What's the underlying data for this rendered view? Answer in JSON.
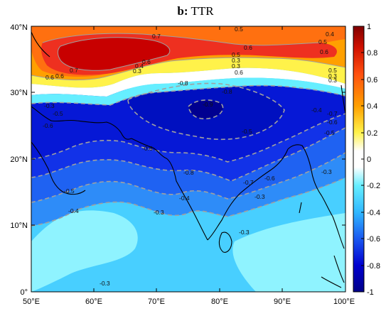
{
  "figure": {
    "panel_label": "b:",
    "title": "TTR"
  },
  "map": {
    "region": "Indian subcontinent / Arabian Sea / Bay of Bengal",
    "lon_ticks": [
      "50°E",
      "60°E",
      "70°E",
      "80°E",
      "90°E",
      "100°E"
    ],
    "lat_ticks": [
      "0°",
      "10°N",
      "20°N",
      "30°N",
      "40°N"
    ],
    "lon_range": [
      50,
      100
    ],
    "lat_range": [
      0,
      40
    ],
    "contour_labels": [
      "0.7",
      "0.5",
      "0.4",
      "0.5",
      "0.6",
      "0.6",
      "0.7",
      "0.6",
      "0.4",
      "0.3",
      "0.6",
      "0.5",
      "0.3",
      "0.6",
      "0.5",
      "0.3",
      "0.6",
      "0.3",
      "0.3",
      "-0.8",
      "-0.9",
      "-0.8",
      "-0.3",
      "-0.5",
      "-0.6",
      "-0.7",
      "-0.6",
      "-0.5",
      "-0.4",
      "-0.6",
      "-0.5",
      "-0.8",
      "-0.7",
      "-0.6",
      "-0.5",
      "-0.4",
      "-0.3",
      "-0.4",
      "-0.3",
      "-0.3",
      "-0.3",
      "-0.3"
    ]
  },
  "colorbar": {
    "ticks": [
      "1",
      "0.8",
      "0.6",
      "0.4",
      "0.2",
      "0",
      "-0.2",
      "-0.4",
      "-0.6",
      "-0.8",
      "-1"
    ],
    "colors": [
      "#000090",
      "#0000d0",
      "#1030f0",
      "#2e6cf0",
      "#3fa8ff",
      "#48cfff",
      "#66eeff",
      "#ffffff",
      "#fff24a",
      "#ffc400",
      "#ff9400",
      "#ff6a10",
      "#ee3020",
      "#b00000"
    ]
  }
}
